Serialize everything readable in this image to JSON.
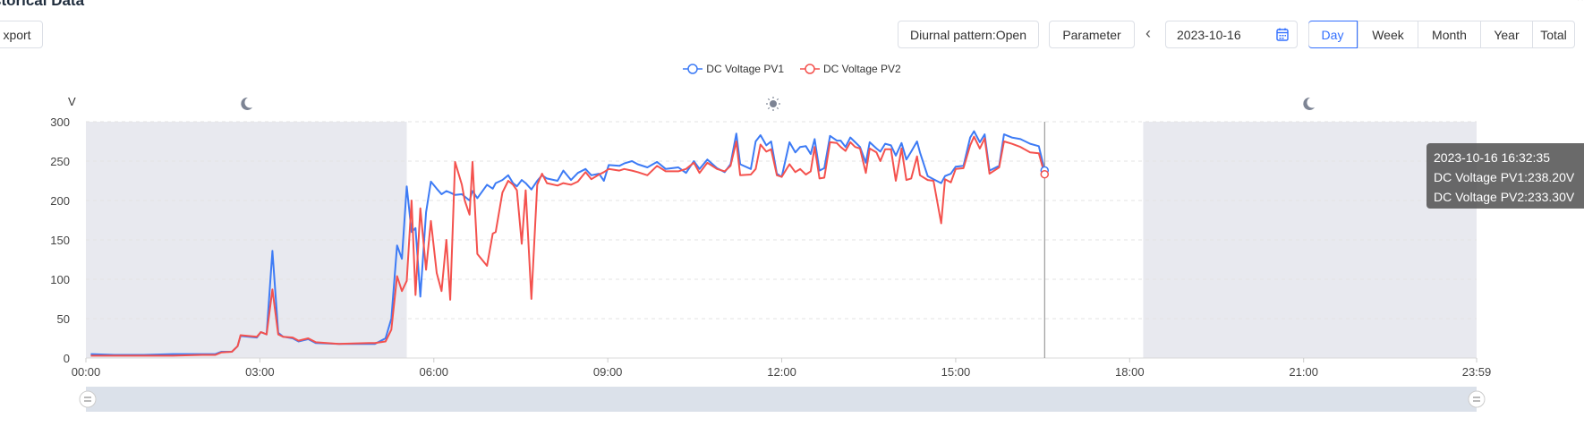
{
  "header": {
    "title": "storical Data",
    "export_label": "xport",
    "diurnal_label": "Diurnal pattern:Open",
    "parameter_label": "Parameter",
    "prev_icon": "chevron-left-icon",
    "date_value": "2023-10-16",
    "calendar_icon": "calendar-icon",
    "close_icon": "close-icon",
    "periods": [
      "Day",
      "Week",
      "Month",
      "Year",
      "Total"
    ],
    "active_period": "Day",
    "accent": "#3370ff"
  },
  "tooltip": {
    "time": "2023-10-16 16:32:35",
    "pv1": "DC Voltage PV1:238.20V",
    "pv2": "DC Voltage PV2:233.30V"
  },
  "chart_data": {
    "type": "line",
    "ylabel": "V",
    "ylim": [
      0,
      300
    ],
    "yticks": [
      "0",
      "50",
      "100",
      "150",
      "200",
      "250",
      "300"
    ],
    "xticks": [
      "00:00",
      "03:00",
      "06:00",
      "09:00",
      "12:00",
      "15:00",
      "18:00",
      "21:00",
      "23:59"
    ],
    "grid": true,
    "legend": "top-center",
    "night_periods": [
      [
        "00:00",
        "05:32"
      ],
      [
        "18:14",
        "23:59"
      ]
    ],
    "period_icons": [
      "moon-icon",
      "sun-icon",
      "moon-icon"
    ],
    "cursor_time": "16:32",
    "series": [
      {
        "name": "DC Voltage PV1",
        "color": "#3d7bf5"
      },
      {
        "name": "DC Voltage PV2",
        "color": "#f4524e"
      }
    ],
    "x": [
      "00:05",
      "00:30",
      "01:00",
      "01:30",
      "02:00",
      "02:14",
      "02:20",
      "02:31",
      "02:37",
      "02:40",
      "02:57",
      "03:01",
      "03:07",
      "03:13",
      "03:19",
      "03:24",
      "03:34",
      "03:40",
      "03:50",
      "03:58",
      "04:22",
      "04:53",
      "04:59",
      "05:10",
      "05:16",
      "05:22",
      "05:27",
      "05:32",
      "05:37",
      "05:41",
      "05:46",
      "05:52",
      "05:57",
      "06:03",
      "06:08",
      "06:13",
      "06:17",
      "06:22",
      "06:29",
      "06:32",
      "06:37",
      "06:40",
      "06:45",
      "06:55",
      "07:01",
      "07:04",
      "07:11",
      "07:17",
      "07:22",
      "07:26",
      "07:31",
      "07:35",
      "07:41",
      "07:47",
      "07:52",
      "07:57",
      "08:08",
      "08:14",
      "08:22",
      "08:29",
      "08:37",
      "08:43",
      "08:51",
      "08:56",
      "09:01",
      "09:12",
      "09:17",
      "09:25",
      "09:31",
      "09:41",
      "09:51",
      "10:00",
      "10:13",
      "10:21",
      "10:29",
      "10:35",
      "10:43",
      "10:53",
      "11:01",
      "11:07",
      "11:13",
      "11:17",
      "11:28",
      "11:33",
      "11:38",
      "11:44",
      "11:49",
      "11:55",
      "12:00",
      "12:08",
      "12:14",
      "12:19",
      "12:25",
      "12:30",
      "12:34",
      "12:39",
      "12:44",
      "12:50",
      "12:57",
      "13:01",
      "13:06",
      "13:11",
      "13:16",
      "13:21",
      "13:27",
      "13:31",
      "13:38",
      "13:42",
      "13:47",
      "13:53",
      "13:58",
      "14:04",
      "14:09",
      "14:14",
      "14:20",
      "14:23",
      "14:31",
      "14:37",
      "14:45",
      "14:49",
      "14:55",
      "15:00",
      "15:08",
      "15:15",
      "15:19",
      "15:25",
      "15:30",
      "15:35",
      "15:45",
      "15:50",
      "15:58",
      "16:07",
      "16:17",
      "16:26",
      "16:32"
    ],
    "pv1": [
      5,
      4,
      4,
      5,
      5,
      5,
      8,
      8,
      15,
      28,
      26,
      33,
      30,
      136,
      32,
      27,
      25,
      21,
      24,
      19,
      18,
      18,
      18,
      25,
      50,
      143,
      126,
      218,
      160,
      165,
      78,
      185,
      224,
      215,
      208,
      212,
      210,
      207,
      208,
      205,
      200,
      212,
      203,
      220,
      215,
      222,
      226,
      232,
      222,
      218,
      226,
      222,
      214,
      225,
      232,
      228,
      225,
      238,
      226,
      235,
      240,
      232,
      234,
      225,
      245,
      244,
      247,
      250,
      246,
      242,
      249,
      240,
      242,
      235,
      250,
      240,
      252,
      241,
      236,
      246,
      285,
      246,
      240,
      275,
      283,
      270,
      275,
      234,
      230,
      274,
      261,
      268,
      269,
      259,
      278,
      238,
      241,
      282,
      276,
      276,
      268,
      280,
      274,
      268,
      248,
      274,
      266,
      262,
      272,
      270,
      257,
      273,
      252,
      262,
      275,
      261,
      231,
      227,
      222,
      231,
      234,
      243,
      244,
      280,
      288,
      274,
      284,
      238,
      244,
      284,
      280,
      278,
      272,
      269,
      238.2
    ],
    "pv2": [
      3,
      3,
      3,
      3,
      4,
      4,
      7,
      8,
      15,
      29,
      27,
      33,
      30,
      87,
      30,
      27,
      26,
      22,
      25,
      20,
      18,
      19,
      19,
      21,
      36,
      104,
      85,
      98,
      200,
      80,
      190,
      112,
      174,
      108,
      85,
      150,
      74,
      249,
      220,
      200,
      182,
      249,
      132,
      117,
      158,
      160,
      210,
      225,
      220,
      213,
      145,
      213,
      75,
      220,
      234,
      222,
      219,
      222,
      220,
      224,
      236,
      227,
      233,
      236,
      240,
      238,
      240,
      238,
      236,
      232,
      244,
      237,
      237,
      240,
      248,
      235,
      248,
      240,
      237,
      244,
      275,
      232,
      233,
      240,
      271,
      262,
      265,
      232,
      230,
      246,
      236,
      240,
      233,
      237,
      268,
      228,
      229,
      274,
      273,
      268,
      263,
      274,
      268,
      266,
      235,
      266,
      261,
      250,
      265,
      265,
      225,
      266,
      226,
      228,
      256,
      232,
      226,
      225,
      171,
      227,
      223,
      240,
      241,
      270,
      281,
      266,
      279,
      234,
      242,
      275,
      272,
      268,
      261,
      260,
      233.3
    ]
  }
}
